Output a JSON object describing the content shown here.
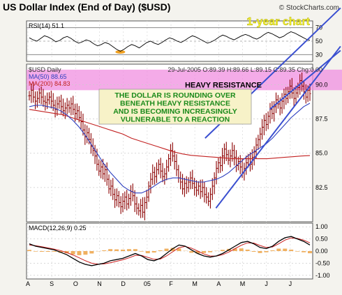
{
  "title": "US Dollar Index (End of Day) ($USD)",
  "watermark": "© StockCharts.com",
  "badge": "1-year chart",
  "chart_data": [
    {
      "panel": "rsi",
      "type": "line",
      "label": "RSI(14) 51.1",
      "ylim": [
        20,
        80
      ],
      "ticks": [
        "70",
        "50",
        "30"
      ],
      "tick_values": [
        70,
        50,
        30
      ],
      "series": [
        {
          "values": [
            55,
            52,
            50,
            54,
            58,
            56,
            53,
            49,
            51,
            55,
            57,
            54,
            50,
            47,
            49,
            52,
            50,
            46,
            43,
            45,
            48,
            46,
            42,
            38,
            35,
            38,
            42,
            45,
            43,
            40,
            44,
            48,
            50,
            47,
            45,
            48,
            52,
            55,
            53,
            50,
            48,
            51,
            55,
            58,
            56,
            53,
            50,
            47,
            49,
            52,
            56,
            59,
            57,
            54,
            52,
            55,
            58,
            60,
            58,
            55,
            53,
            56,
            60,
            63,
            61,
            58,
            55,
            57,
            61,
            64,
            62,
            59,
            56,
            53,
            51.1
          ]
        }
      ],
      "grid": true
    },
    {
      "panel": "price",
      "type": "ohlc",
      "legend": {
        "name": "$USD Daily",
        "ma50": "MA(50) 88.65",
        "ma200": "MA(200) 84.83",
        "ohlc_text": "29-Jul-2005 O:89.39 H:89.66 L:89.15 C:89.35 Chg:0.00"
      },
      "ylim": [
        80,
        91.5
      ],
      "ticks": [
        "90.0",
        "87.5",
        "85.0",
        "82.5"
      ],
      "tick_values": [
        90,
        87.5,
        85,
        82.5
      ],
      "resistance_zone": [
        89.6,
        91.1
      ],
      "resistance_label": "HEAVY RESISTANCE",
      "annotation": [
        "THE DOLLAR IS ROUNDING OVER",
        "BENEATH HEAVY RESISTANCE",
        "AND IS BECOMING INCREASINGLY",
        "VULNERABLE TO A REACTION"
      ],
      "closes": [
        89.2,
        89.6,
        89.1,
        88.8,
        89.0,
        89.4,
        89.1,
        88.8,
        88.7,
        88.9,
        89.1,
        88.8,
        88.5,
        88.2,
        88.6,
        88.8,
        88.4,
        88.1,
        88.3,
        88.5,
        88.3,
        88.6,
        88.2,
        87.9,
        88.1,
        87.6,
        87.3,
        86.7,
        86.2,
        86.5,
        86.0,
        85.5,
        85.2,
        84.8,
        84.2,
        83.7,
        84.0,
        83.5,
        83.8,
        83.1,
        82.4,
        82.6,
        82.0,
        81.6,
        81.9,
        81.4,
        81.1,
        81.5,
        81.8,
        81.3,
        81.7,
        82.2,
        81.9,
        81.3,
        81.0,
        80.8,
        81.2,
        80.7,
        81.4,
        81.8,
        82.6,
        83.1,
        83.6,
        83.3,
        83.8,
        84.2,
        83.7,
        83.3,
        83.5,
        84.0,
        84.6,
        85.2,
        84.8,
        84.4,
        83.8,
        83.2,
        82.9,
        82.4,
        82.8,
        82.5,
        82.9,
        83.2,
        82.8,
        82.5,
        82.3,
        82.6,
        82.2,
        82.5,
        82.0,
        81.8,
        81.5,
        82.0,
        82.6,
        83.2,
        83.9,
        84.3,
        84.1,
        84.8,
        85.3,
        84.9,
        84.5,
        84.8,
        85.2,
        84.7,
        84.1,
        84.4,
        84.0,
        83.6,
        83.9,
        84.3,
        84.6,
        84.2,
        84.7,
        85.1,
        85.6,
        86.0,
        86.4,
        86.9,
        87.4,
        87.1,
        87.7,
        88.2,
        87.9,
        88.4,
        88.9,
        88.6,
        88.3,
        88.8,
        89.3,
        89.0,
        89.5,
        89.9,
        89.4,
        89.0,
        89.4,
        89.8,
        90.3,
        89.9,
        89.5,
        89.1,
        89.6,
        89.35
      ],
      "ma50": [
        88.4,
        88.5,
        88.5,
        88.4,
        88.3,
        88.1,
        87.8,
        87.4,
        86.9,
        86.3,
        85.6,
        84.9,
        84.2,
        83.6,
        83.1,
        82.6,
        82.3,
        82.1,
        82.1,
        82.3,
        82.6,
        82.9,
        83.1,
        83.2,
        83.2,
        83.1,
        83.0,
        82.9,
        82.9,
        83.0,
        83.1,
        83.3,
        83.6,
        84.0,
        84.4,
        84.8,
        85.1,
        85.4,
        85.7,
        86.1,
        86.6,
        87.1,
        87.6,
        88.0,
        88.4,
        88.65
      ],
      "ma200": [
        88.2,
        88.1,
        88.0,
        87.9,
        87.8,
        87.6,
        87.4,
        87.2,
        87.0,
        86.8,
        86.6,
        86.4,
        86.1,
        85.9,
        85.7,
        85.5,
        85.3,
        85.1,
        84.95,
        84.85,
        84.8,
        84.75,
        84.7,
        84.65,
        84.6,
        84.6,
        84.6,
        84.6,
        84.6,
        84.65,
        84.7,
        84.75,
        84.8,
        84.83
      ],
      "trend_lines": [
        {
          "from": [
            0.662,
            81.0
          ],
          "to": [
            0.99,
            92.8
          ]
        },
        {
          "from": [
            0.624,
            86.1
          ],
          "to": [
            0.99,
            95.6
          ]
        },
        {
          "from": [
            0.85,
            88.2
          ],
          "to": [
            0.99,
            92.5
          ]
        }
      ]
    },
    {
      "panel": "macd",
      "type": "line",
      "label": "MACD(12,26,9) 0.25",
      "ylim": [
        -1.15,
        1.15
      ],
      "ticks": [
        "1.00",
        "0.50",
        "0.00",
        "-0.50",
        "-1.00"
      ],
      "tick_values": [
        1.0,
        0.5,
        0.0,
        -0.5,
        -1.0
      ],
      "macd": [
        0.3,
        0.2,
        0.15,
        0.1,
        0.05,
        -0.05,
        -0.15,
        -0.3,
        -0.45,
        -0.55,
        -0.6,
        -0.55,
        -0.5,
        -0.4,
        -0.35,
        -0.3,
        -0.2,
        -0.1,
        -0.2,
        -0.35,
        -0.4,
        -0.3,
        -0.1,
        0.1,
        0.25,
        0.2,
        0.05,
        -0.1,
        -0.2,
        -0.25,
        -0.2,
        -0.1,
        0.05,
        0.2,
        0.35,
        0.4,
        0.3,
        0.15,
        0.1,
        0.2,
        0.4,
        0.55,
        0.6,
        0.5,
        0.4,
        0.25
      ],
      "signal": [
        0.25,
        0.22,
        0.18,
        0.13,
        0.08,
        0.02,
        -0.06,
        -0.16,
        -0.28,
        -0.4,
        -0.5,
        -0.54,
        -0.53,
        -0.48,
        -0.42,
        -0.36,
        -0.28,
        -0.18,
        -0.18,
        -0.26,
        -0.34,
        -0.33,
        -0.2,
        -0.03,
        0.14,
        0.19,
        0.12,
        0.0,
        -0.12,
        -0.2,
        -0.21,
        -0.15,
        -0.04,
        0.1,
        0.24,
        0.34,
        0.33,
        0.23,
        0.15,
        0.17,
        0.3,
        0.45,
        0.54,
        0.52,
        0.45,
        0.34
      ]
    }
  ],
  "x_axis": {
    "labels": [
      "A",
      "S",
      "O",
      "N",
      "D",
      "05",
      "F",
      "M",
      "A",
      "M",
      "J",
      "J"
    ]
  },
  "colors": {
    "background": "#f4f3ee",
    "panel_bg": "#ffffff",
    "bars": "#8b0000",
    "ma50": "#2d3fbf",
    "ma200": "#c22020",
    "trend": "#3a4fd0",
    "resistance": "#f08fe0",
    "annotation_bg": "#f7f2c8",
    "annotation_text": "#1a8a1a",
    "badge": "#f2ef30",
    "rsi_fill": "#f0a020",
    "macd_hist": "#f0b060"
  }
}
